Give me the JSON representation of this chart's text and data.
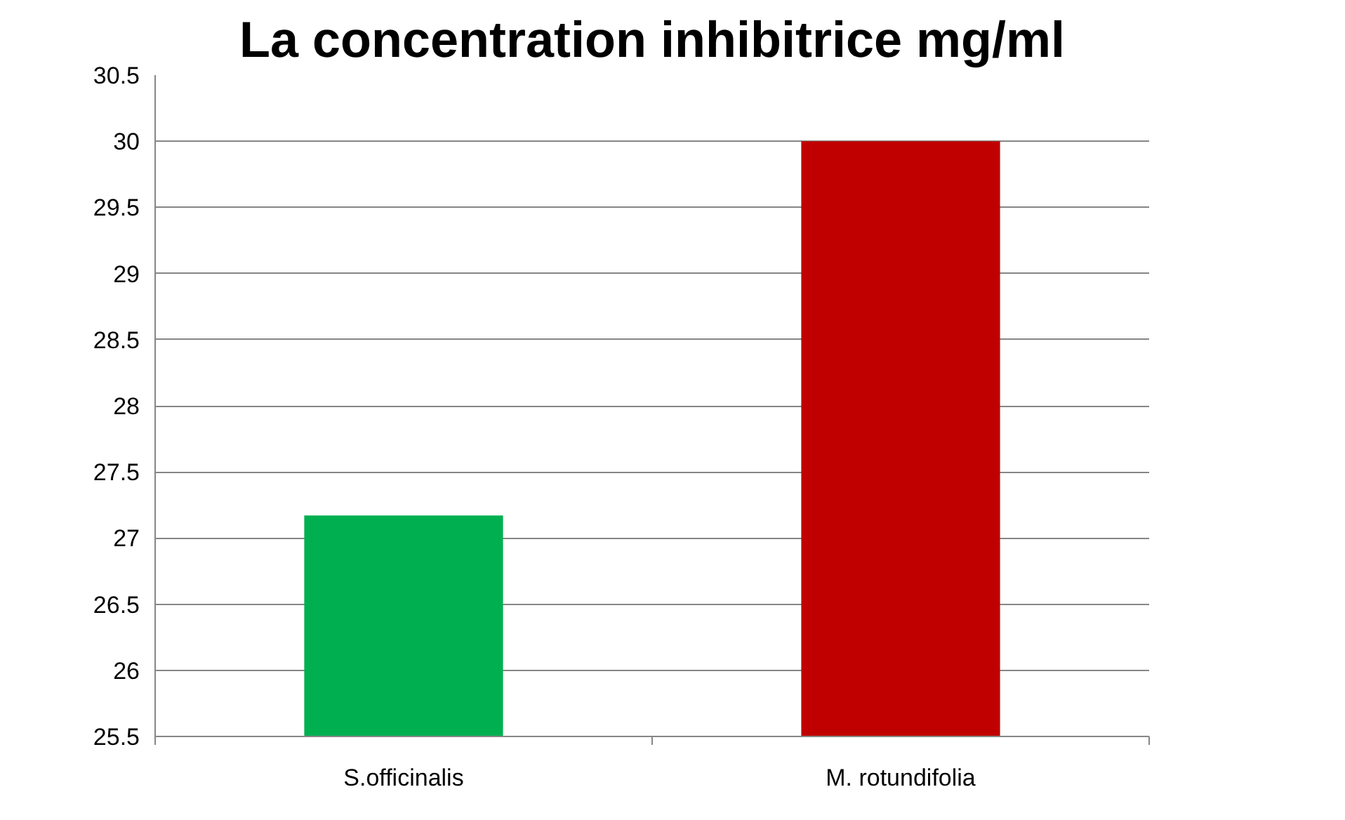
{
  "chart_data": {
    "type": "bar",
    "title": "La concentration inhibitrice mg/ml",
    "categories": [
      "S.officinalis",
      "M. rotundifolia"
    ],
    "values": [
      27.17,
      30
    ],
    "colors": [
      "#00b050",
      "#c00000"
    ],
    "ylim": [
      25.5,
      30.5
    ],
    "yticks": [
      25.5,
      26,
      26.5,
      27,
      27.5,
      28,
      28.5,
      29,
      29.5,
      30,
      30.5
    ],
    "grid": "y"
  }
}
